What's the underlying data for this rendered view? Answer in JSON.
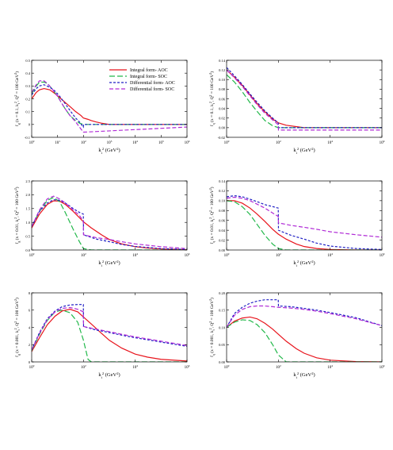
{
  "legend": [
    {
      "label": "Integral form- AOC",
      "color": "#e8141c",
      "dash": "solid"
    },
    {
      "label": "Integral form- SOC",
      "color": "#22b84a",
      "dash": "long"
    },
    {
      "label": "Differential form- AOC",
      "color": "#1f1fc4",
      "dash": "short"
    },
    {
      "label": "Differential form- SOC",
      "color": "#b02bd6",
      "dash": "medium"
    }
  ],
  "chart_data": [
    {
      "type": "line",
      "ylabel": "f_g (x = 0.1, k_t^2, Q^2 = 100 GeV^2)",
      "xlabel": "k_t^2 (GeV^2)",
      "xscale": "log",
      "xlim": [
        1,
        1000000
      ],
      "xticks": [
        "10^0",
        "10^1",
        "10^2",
        "10^3",
        "10^4",
        "10^5",
        "10^6"
      ],
      "ylim": [
        -0.1,
        0.5
      ],
      "yticks": [
        "-0.1",
        "0",
        "0.1",
        "0.2",
        "0.3",
        "0.4",
        "0.5"
      ],
      "legend_position": "top-right",
      "series": [
        {
          "name": "Integral form- AOC",
          "x": [
            1,
            1.5,
            2,
            3,
            5,
            8,
            12,
            20,
            30,
            50,
            80,
            100,
            150,
            200,
            300,
            500,
            1000,
            10000,
            100000,
            1000000
          ],
          "y": [
            0.2,
            0.25,
            0.27,
            0.28,
            0.27,
            0.24,
            0.21,
            0.17,
            0.14,
            0.1,
            0.07,
            0.05,
            0.04,
            0.03,
            0.02,
            0.01,
            0,
            0,
            0,
            0
          ]
        },
        {
          "name": "Integral form- SOC",
          "x": [
            1,
            1.5,
            2,
            3,
            4,
            6,
            10,
            15,
            20,
            30,
            50,
            70,
            100,
            1000,
            10000,
            100000,
            1000000
          ],
          "y": [
            0.24,
            0.3,
            0.33,
            0.33,
            0.32,
            0.28,
            0.22,
            0.16,
            0.12,
            0.07,
            0.03,
            0.01,
            0,
            0,
            0,
            0,
            0
          ]
        },
        {
          "name": "Differential form- AOC",
          "x": [
            1,
            1.5,
            2,
            3,
            5,
            8,
            12,
            20,
            30,
            50,
            70,
            99,
            101,
            1000,
            10000,
            100000,
            1000000
          ],
          "y": [
            0.23,
            0.28,
            0.3,
            0.31,
            0.29,
            0.26,
            0.22,
            0.16,
            0.11,
            0.05,
            0.02,
            -0.02,
            0,
            0,
            0,
            0,
            0
          ]
        },
        {
          "name": "Differential form- SOC",
          "x": [
            1,
            1.5,
            2,
            3,
            4,
            6,
            10,
            15,
            20,
            30,
            50,
            70,
            99,
            101,
            1000,
            10000,
            100000,
            1000000
          ],
          "y": [
            0.25,
            0.31,
            0.34,
            0.34,
            0.32,
            0.28,
            0.22,
            0.16,
            0.12,
            0.07,
            0.02,
            -0.02,
            -0.06,
            -0.06,
            -0.05,
            -0.04,
            -0.03,
            -0.02
          ]
        }
      ]
    },
    {
      "type": "line",
      "ylabel": "f_q (x = 0.1, k_t^2, Q^2 = 100 GeV^2)",
      "xlabel": "k_t^2 (GeV^2)",
      "xscale": "log",
      "xlim": [
        1,
        1000000
      ],
      "xticks": [
        "10^0",
        "10^2",
        "10^4",
        "10^6"
      ],
      "ylim": [
        -0.02,
        0.14
      ],
      "yticks": [
        "-0.02",
        "0.00",
        "0.02",
        "0.04",
        "0.06",
        "0.08",
        "0.10",
        "0.12",
        "0.14"
      ],
      "series": [
        {
          "name": "Integral form- AOC",
          "x": [
            1,
            2,
            4,
            8,
            15,
            30,
            60,
            100,
            200,
            1000,
            10000,
            100000,
            1000000
          ],
          "y": [
            0.12,
            0.105,
            0.088,
            0.068,
            0.05,
            0.033,
            0.018,
            0.01,
            0.005,
            0,
            0,
            0,
            0
          ]
        },
        {
          "name": "Integral form- SOC",
          "x": [
            1,
            2,
            4,
            8,
            15,
            30,
            60,
            100,
            1000,
            10000,
            100000,
            1000000
          ],
          "y": [
            0.11,
            0.095,
            0.075,
            0.052,
            0.034,
            0.015,
            0.004,
            0,
            0,
            0,
            0,
            0
          ]
        },
        {
          "name": "Differential form- AOC",
          "x": [
            1,
            2,
            4,
            8,
            15,
            30,
            60,
            99,
            101,
            1000,
            10000,
            100000,
            1000000
          ],
          "y": [
            0.125,
            0.108,
            0.09,
            0.07,
            0.053,
            0.035,
            0.02,
            0.01,
            0.0,
            0.0,
            0.0,
            0.0,
            0.0
          ]
        },
        {
          "name": "Differential form- SOC",
          "x": [
            1,
            2,
            4,
            8,
            15,
            30,
            60,
            99,
            101,
            1000,
            10000,
            100000,
            1000000
          ],
          "y": [
            0.12,
            0.104,
            0.086,
            0.066,
            0.048,
            0.03,
            0.016,
            0.006,
            -0.005,
            -0.005,
            -0.005,
            -0.005,
            -0.005
          ]
        }
      ]
    },
    {
      "type": "line",
      "ylabel": "f_g (x = 0.01, k_t^2, Q^2 = 100 GeV^2)",
      "xlabel": "k_t^2 (GeV^2)",
      "xscale": "log",
      "xlim": [
        1,
        1000000
      ],
      "xticks": [
        "10^0",
        "10^2",
        "10^4",
        "10^6"
      ],
      "ylim": [
        0,
        2.5
      ],
      "yticks": [
        "0.0",
        "0.5",
        "1.0",
        "1.5",
        "2.0",
        "2.5"
      ],
      "series": [
        {
          "name": "Integral form- AOC",
          "x": [
            1,
            2,
            4,
            7,
            12,
            20,
            40,
            70,
            100,
            200,
            500,
            1000,
            3000,
            10000,
            30000,
            100000,
            1000000
          ],
          "y": [
            0.8,
            1.3,
            1.65,
            1.78,
            1.77,
            1.65,
            1.4,
            1.17,
            1.02,
            0.8,
            0.55,
            0.38,
            0.22,
            0.12,
            0.07,
            0.04,
            0.01
          ]
        },
        {
          "name": "Integral form- SOC",
          "x": [
            1,
            2,
            4,
            7,
            12,
            20,
            40,
            70,
            100,
            200,
            1000,
            1000000
          ],
          "y": [
            0.85,
            1.4,
            1.8,
            1.9,
            1.75,
            1.35,
            0.75,
            0.3,
            0.05,
            0.0,
            0.0,
            0.0
          ]
        },
        {
          "name": "Differential form- AOC",
          "x": [
            1,
            2,
            4,
            7,
            12,
            20,
            40,
            70,
            99,
            101,
            300,
            1000,
            3000,
            10000,
            100000,
            1000000
          ],
          "y": [
            0.85,
            1.4,
            1.7,
            1.82,
            1.8,
            1.7,
            1.5,
            1.36,
            1.3,
            0.55,
            0.4,
            0.3,
            0.2,
            0.13,
            0.05,
            0.02
          ]
        },
        {
          "name": "Differential form- SOC",
          "x": [
            1,
            2,
            4,
            7,
            12,
            20,
            40,
            70,
            99,
            101,
            300,
            1000,
            3000,
            10000,
            100000,
            1000000
          ],
          "y": [
            0.85,
            1.45,
            1.85,
            1.95,
            1.85,
            1.7,
            1.45,
            1.25,
            1.05,
            0.55,
            0.45,
            0.38,
            0.3,
            0.22,
            0.12,
            0.05
          ]
        }
      ]
    },
    {
      "type": "line",
      "ylabel": "f_q (x = 0.01, k_t^2, Q^2 = 100 GeV^2)",
      "xlabel": "k_t^2 (GeV^2)",
      "xscale": "log",
      "xlim": [
        1,
        1000000
      ],
      "xticks": [
        "10^0",
        "10^2",
        "10^4",
        "10^6"
      ],
      "ylim": [
        0,
        0.14
      ],
      "yticks": [
        "0.00",
        "0.02",
        "0.04",
        "0.06",
        "0.08",
        "0.10",
        "0.12",
        "0.14"
      ],
      "series": [
        {
          "name": "Integral form- AOC",
          "x": [
            1,
            2,
            4,
            8,
            15,
            30,
            60,
            100,
            200,
            500,
            1000,
            3000,
            10000,
            100000,
            1000000
          ],
          "y": [
            0.1,
            0.1,
            0.095,
            0.085,
            0.073,
            0.058,
            0.042,
            0.032,
            0.022,
            0.012,
            0.007,
            0.003,
            0.001,
            0,
            0
          ]
        },
        {
          "name": "Integral form- SOC",
          "x": [
            1,
            2,
            4,
            8,
            15,
            30,
            60,
            100,
            200,
            1000,
            1000000
          ],
          "y": [
            0.1,
            0.098,
            0.088,
            0.072,
            0.052,
            0.03,
            0.012,
            0.003,
            0.0,
            0.0,
            0.0
          ]
        },
        {
          "name": "Differential form- AOC",
          "x": [
            1,
            2,
            4,
            8,
            15,
            30,
            60,
            99,
            101,
            300,
            1000,
            3000,
            10000,
            100000,
            1000000
          ],
          "y": [
            0.108,
            0.11,
            0.108,
            0.103,
            0.098,
            0.092,
            0.088,
            0.085,
            0.04,
            0.03,
            0.022,
            0.014,
            0.008,
            0.003,
            0.001
          ]
        },
        {
          "name": "Differential form- SOC",
          "x": [
            1,
            2,
            4,
            8,
            15,
            30,
            60,
            99,
            101,
            300,
            1000,
            3000,
            10000,
            100000,
            1000000
          ],
          "y": [
            0.105,
            0.107,
            0.105,
            0.1,
            0.093,
            0.085,
            0.075,
            0.068,
            0.055,
            0.05,
            0.046,
            0.042,
            0.037,
            0.031,
            0.026
          ]
        }
      ]
    },
    {
      "type": "line",
      "ylabel": "f_g (x = 0.001, k_t^2, Q^2 = 100 GeV^2)",
      "xlabel": "k_t^2 (GeV^2)",
      "xscale": "log",
      "xlim": [
        1,
        1000000
      ],
      "xticks": [
        "10^0",
        "10^2",
        "10^4",
        "10^6"
      ],
      "ylim": [
        0,
        8
      ],
      "yticks": [
        "0",
        "2",
        "4",
        "6",
        "8"
      ],
      "series": [
        {
          "name": "Integral form- AOC",
          "x": [
            1,
            2,
            4,
            8,
            15,
            30,
            60,
            100,
            200,
            500,
            1000,
            3000,
            10000,
            30000,
            100000,
            1000000
          ],
          "y": [
            1.2,
            2.8,
            4.3,
            5.3,
            5.9,
            6.1,
            5.8,
            5.2,
            4.4,
            3.3,
            2.5,
            1.6,
            0.9,
            0.55,
            0.3,
            0.1
          ]
        },
        {
          "name": "Integral form- SOC",
          "x": [
            1,
            2,
            4,
            8,
            15,
            30,
            60,
            100,
            150,
            200,
            1000,
            1000000
          ],
          "y": [
            1.3,
            3.2,
            4.8,
            5.8,
            6.0,
            5.7,
            4.6,
            2.5,
            0.3,
            0.0,
            0.0,
            0.0
          ]
        },
        {
          "name": "Differential form- AOC",
          "x": [
            1,
            2,
            4,
            8,
            15,
            30,
            60,
            99,
            101,
            300,
            1000,
            3000,
            10000,
            100000,
            1000000
          ],
          "y": [
            1.4,
            3.4,
            5.0,
            5.9,
            6.4,
            6.6,
            6.65,
            6.65,
            4.1,
            3.7,
            3.4,
            3.1,
            2.8,
            2.3,
            1.8
          ]
        },
        {
          "name": "Differential form- SOC",
          "x": [
            1,
            2,
            4,
            8,
            15,
            30,
            60,
            99,
            101,
            300,
            1000,
            3000,
            10000,
            100000,
            1000000
          ],
          "y": [
            1.4,
            3.3,
            4.9,
            5.8,
            6.2,
            6.3,
            6.1,
            5.8,
            4.1,
            3.8,
            3.5,
            3.2,
            2.9,
            2.4,
            1.9
          ]
        }
      ]
    },
    {
      "type": "line",
      "ylabel": "f_q (x = 0.001, k_t^2, Q^2 = 100 GeV^2)",
      "xlabel": "k_t^2 (GeV^2)",
      "xscale": "log",
      "xlim": [
        1,
        1000000
      ],
      "xticks": [
        "10^0",
        "10^2",
        "10^4",
        "10^6"
      ],
      "ylim": [
        0,
        0.2
      ],
      "yticks": [
        "0.00",
        "0.05",
        "0.10",
        "0.15",
        "0.20"
      ],
      "series": [
        {
          "name": "Integral form- AOC",
          "x": [
            1,
            2,
            4,
            8,
            15,
            30,
            60,
            100,
            200,
            500,
            1000,
            3000,
            10000,
            100000,
            1000000
          ],
          "y": [
            0.1,
            0.118,
            0.127,
            0.13,
            0.125,
            0.112,
            0.095,
            0.08,
            0.06,
            0.038,
            0.025,
            0.012,
            0.005,
            0.001,
            0.0
          ]
        },
        {
          "name": "Integral form- SOC",
          "x": [
            1,
            2,
            4,
            8,
            15,
            30,
            60,
            100,
            200,
            1000,
            1000000
          ],
          "y": [
            0.1,
            0.115,
            0.122,
            0.12,
            0.108,
            0.085,
            0.05,
            0.02,
            0.0,
            0.0,
            0.0
          ]
        },
        {
          "name": "Differential form- AOC",
          "x": [
            1,
            2,
            4,
            8,
            15,
            30,
            60,
            99,
            101,
            300,
            1000,
            3000,
            10000,
            100000,
            1000000
          ],
          "y": [
            0.1,
            0.14,
            0.158,
            0.17,
            0.176,
            0.18,
            0.18,
            0.18,
            0.162,
            0.16,
            0.155,
            0.15,
            0.143,
            0.128,
            0.105
          ]
        },
        {
          "name": "Differential form- SOC",
          "x": [
            1,
            2,
            4,
            8,
            15,
            30,
            60,
            99,
            101,
            300,
            1000,
            3000,
            10000,
            100000,
            1000000
          ],
          "y": [
            0.1,
            0.135,
            0.152,
            0.16,
            0.162,
            0.162,
            0.16,
            0.158,
            0.158,
            0.156,
            0.152,
            0.147,
            0.14,
            0.125,
            0.105
          ]
        }
      ]
    }
  ]
}
